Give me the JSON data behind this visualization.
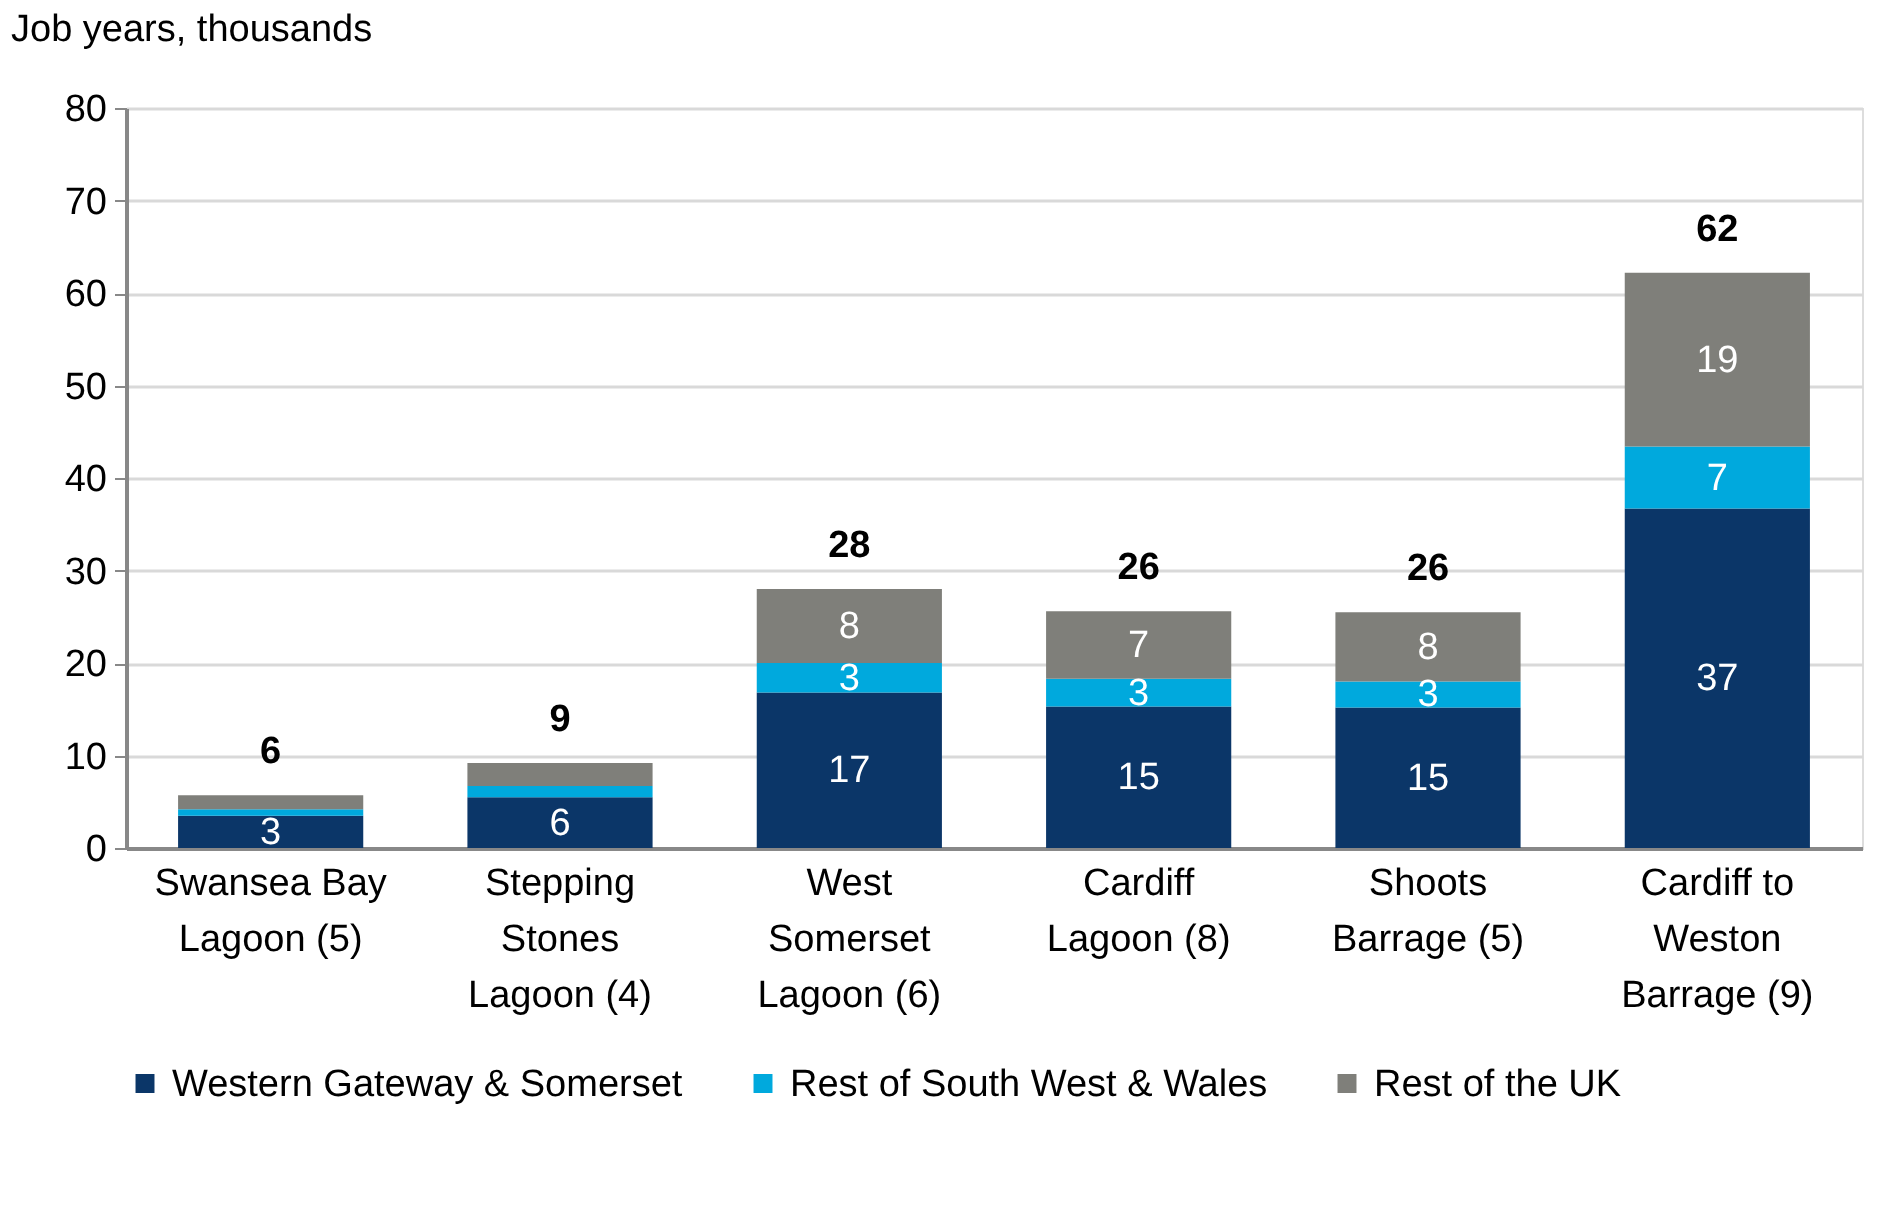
{
  "chart_data": {
    "type": "bar",
    "stacked": true,
    "ylabel": "Job years, thousands",
    "categories": [
      "Swansea Bay Lagoon (5)",
      "Stepping Stones Lagoon (4)",
      "West Somerset Lagoon (6)",
      "Cardiff Lagoon (8)",
      "Shoots Barrage (5)",
      "Cardiff to Weston Barrage (9)"
    ],
    "series": [
      {
        "name": "Western Gateway & Somerset",
        "color": "#0b3668",
        "values": [
          3.5,
          5.5,
          16.8,
          15.3,
          15.2,
          36.7
        ],
        "value_labels": [
          "3",
          "6",
          "17",
          "15",
          "15",
          "37"
        ]
      },
      {
        "name": "Rest of South West & Wales",
        "color": "#00a9dd",
        "values": [
          0.7,
          1.2,
          3.2,
          3.0,
          2.8,
          6.7
        ],
        "value_labels": [
          null,
          null,
          "3",
          "3",
          "3",
          "7"
        ]
      },
      {
        "name": "Rest of the UK",
        "color": "#7f7f7a",
        "values": [
          1.5,
          2.5,
          8.0,
          7.3,
          7.5,
          18.8
        ],
        "value_labels": [
          null,
          null,
          "8",
          "7",
          "8",
          "19"
        ]
      }
    ],
    "totals": [
      "6",
      "9",
      "28",
      "26",
      "26",
      "62"
    ],
    "ylim": [
      0,
      80
    ],
    "yticks": [
      0,
      10,
      20,
      30,
      40,
      50,
      60,
      70,
      80
    ],
    "grid": "y",
    "legend": "bottom"
  }
}
